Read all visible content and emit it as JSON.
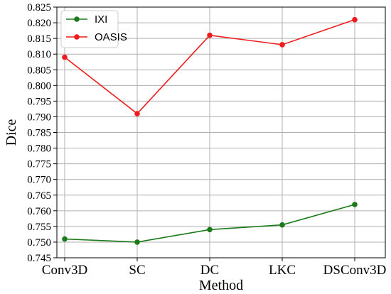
{
  "chart_data": {
    "type": "line",
    "categories": [
      "Conv3D",
      "SC",
      "DC",
      "LKC",
      "DSConv3D"
    ],
    "series": [
      {
        "name": "IXI",
        "color": "#1a7a1a",
        "values": [
          0.751,
          0.75,
          0.754,
          0.7555,
          0.762
        ]
      },
      {
        "name": "OASIS",
        "color": "#ee1c1c",
        "values": [
          0.809,
          0.791,
          0.816,
          0.813,
          0.821
        ]
      }
    ],
    "xlabel": "Method",
    "ylabel": "Dice",
    "ylim": [
      0.745,
      0.825
    ],
    "yticks": [
      "0.745",
      "0.750",
      "0.755",
      "0.760",
      "0.765",
      "0.770",
      "0.775",
      "0.780",
      "0.785",
      "0.790",
      "0.795",
      "0.800",
      "0.805",
      "0.810",
      "0.815",
      "0.820",
      "0.825"
    ],
    "grid": true,
    "legend_position": "top-left"
  }
}
